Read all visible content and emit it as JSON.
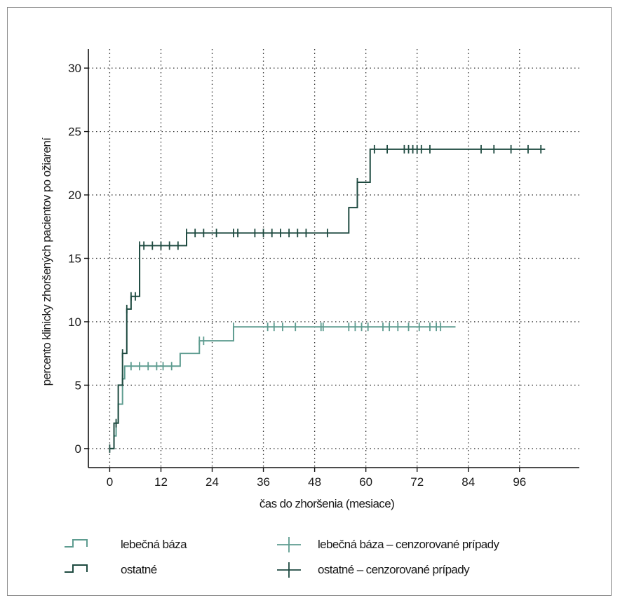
{
  "chart_data": {
    "type": "line",
    "subtype": "step-kaplan-meier",
    "xlabel": "čas do zhoršenia (mesiace)",
    "ylabel": "percento klinicky zhoršených pacientov po ožiarení",
    "xlim": [
      -5,
      110
    ],
    "ylim": [
      -1.5,
      31.5
    ],
    "xticks": [
      0,
      12,
      24,
      36,
      48,
      60,
      72,
      84,
      96
    ],
    "yticks": [
      0,
      5,
      10,
      15,
      20,
      25,
      30
    ],
    "grid": true,
    "legend_position": "bottom",
    "series": [
      {
        "name": "lebečná báza",
        "color": "#5e9c90",
        "steps": [
          [
            0,
            0
          ],
          [
            1,
            1
          ],
          [
            1.5,
            2
          ],
          [
            2,
            3.5
          ],
          [
            3,
            5.5
          ],
          [
            3.5,
            6.5
          ],
          [
            15,
            6.5
          ],
          [
            16.5,
            7.5
          ],
          [
            21,
            8.5
          ],
          [
            29,
            9.6
          ],
          [
            81,
            9.6
          ]
        ],
        "censored": [
          1.5,
          3,
          5,
          7,
          9,
          11,
          12.5,
          14.5,
          21,
          22,
          29,
          37,
          38.5,
          40.5,
          43.5,
          49.5,
          50,
          56,
          57.5,
          59,
          60.5,
          64,
          65.5,
          67.5,
          70,
          72.5,
          75,
          76.5,
          77.5
        ]
      },
      {
        "name": "ostatné",
        "color": "#1e4a40",
        "steps": [
          [
            0,
            0
          ],
          [
            1,
            2
          ],
          [
            2,
            5
          ],
          [
            3,
            7.5
          ],
          [
            4,
            11
          ],
          [
            5,
            12
          ],
          [
            7,
            16
          ],
          [
            18,
            17
          ],
          [
            56,
            19
          ],
          [
            58,
            21
          ],
          [
            61,
            23.6
          ],
          [
            102,
            23.6
          ]
        ],
        "censored": [
          0,
          1.5,
          3,
          4,
          5,
          6,
          7,
          8,
          10,
          12,
          14,
          16,
          18,
          20,
          22,
          25,
          29,
          30,
          34,
          36,
          38,
          40,
          42,
          44,
          46,
          51,
          58,
          62,
          65,
          69,
          70,
          71,
          72,
          73,
          75,
          87,
          90,
          94,
          98,
          101
        ]
      }
    ],
    "legend": {
      "items": [
        {
          "label": "lebečná báza",
          "glyph": "step",
          "color": "#5e9c90"
        },
        {
          "label": "ostatné",
          "glyph": "step",
          "color": "#1e4a40"
        },
        {
          "label": "lebečná báza – cenzorované prípady",
          "glyph": "cross",
          "color": "#5e9c90"
        },
        {
          "label": "ostatné – cenzorované prípady",
          "glyph": "cross",
          "color": "#1e4a40"
        }
      ]
    }
  }
}
